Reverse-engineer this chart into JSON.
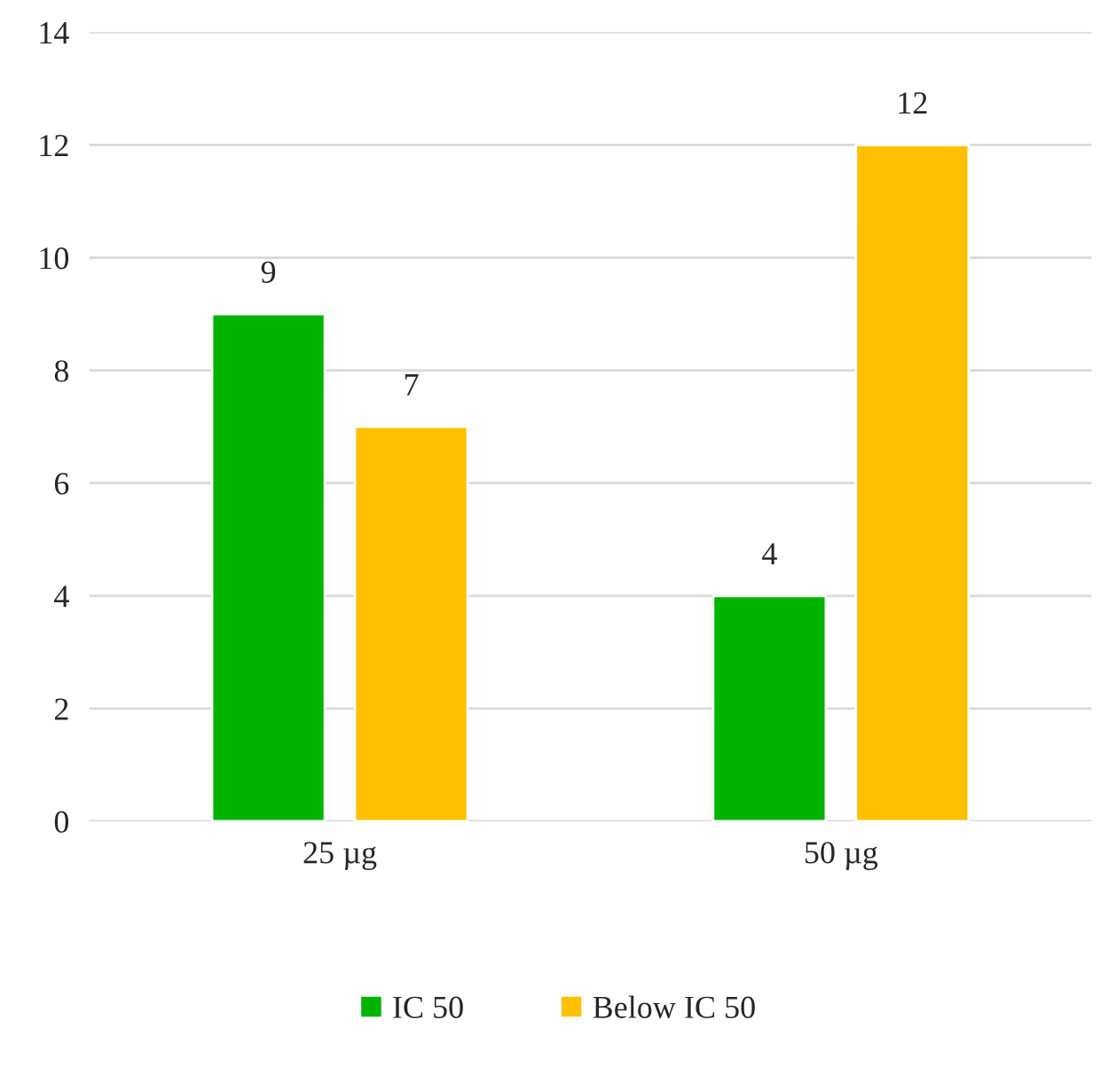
{
  "chart_data": {
    "type": "bar",
    "categories": [
      "25 µg",
      "50 µg"
    ],
    "series": [
      {
        "name": "IC 50",
        "color": "#00b400",
        "values": [
          9,
          4
        ]
      },
      {
        "name": "Below IC 50",
        "color": "#ffc000",
        "values": [
          7,
          12
        ]
      }
    ],
    "ylim": [
      0,
      14
    ],
    "yticks": [
      0,
      2,
      4,
      6,
      8,
      10,
      12,
      14
    ],
    "grid": "y",
    "legend": "bottom",
    "data_labels": true
  }
}
